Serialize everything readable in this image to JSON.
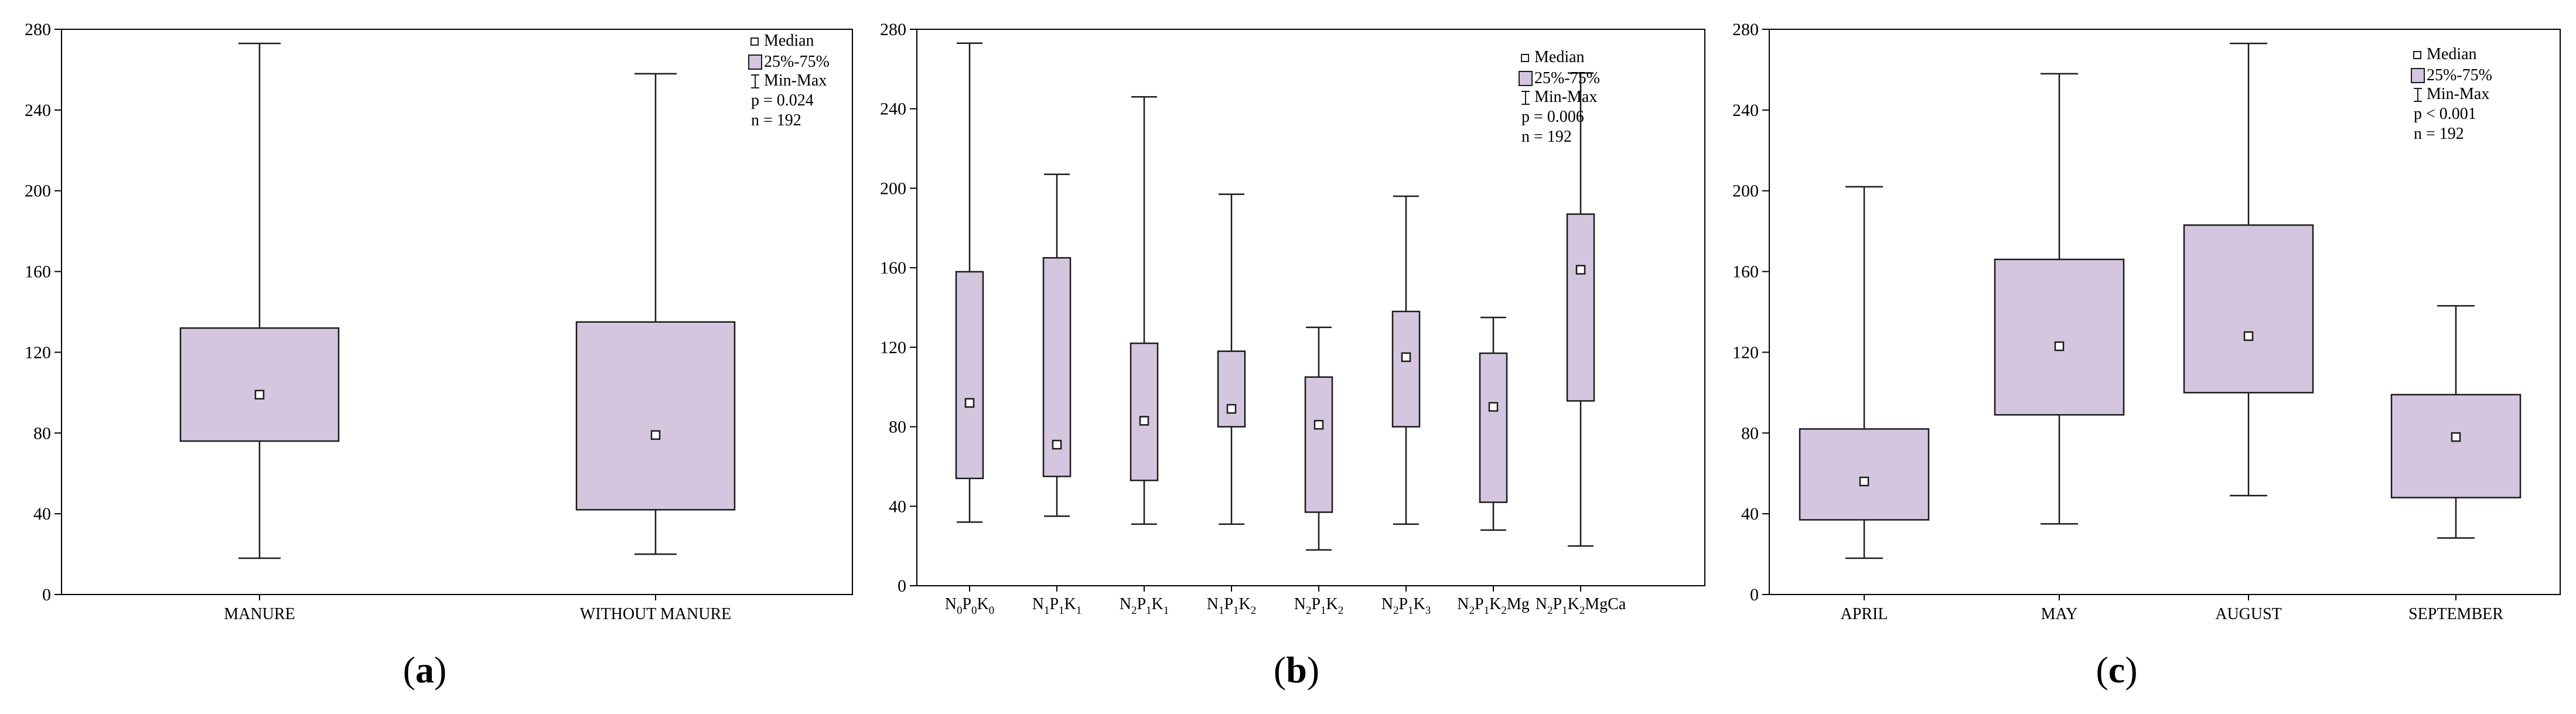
{
  "colors": {
    "box_fill": "#d4c6df",
    "box_stroke": "#1a1a1a",
    "axis": "#000000"
  },
  "legend": {
    "median_label": "Median",
    "iqr_label": "25%-75%",
    "range_label": "Min-Max",
    "median_icon": "small-square-icon",
    "iqr_icon": "box-swatch-icon",
    "range_icon": "whisker-icon"
  },
  "chart_data": [
    {
      "type": "boxplot",
      "caption": "(a)",
      "caption_letter": "a",
      "ylim": [
        0,
        280
      ],
      "yticks": [
        0,
        40,
        80,
        120,
        160,
        200,
        240,
        280
      ],
      "stat_p": "p = 0.024",
      "stat_n": "n = 192",
      "categories": [
        "MANURE",
        "WITHOUT MANURE"
      ],
      "series": [
        {
          "name": "MANURE",
          "min": 18,
          "q1": 76,
          "median": 99,
          "q3": 132,
          "max": 273
        },
        {
          "name": "WITHOUT MANURE",
          "min": 20,
          "q1": 42,
          "median": 79,
          "q3": 135,
          "max": 258
        }
      ]
    },
    {
      "type": "boxplot",
      "caption": "(b)",
      "caption_letter": "b",
      "ylim": [
        0,
        280
      ],
      "yticks": [
        0,
        40,
        80,
        120,
        160,
        200,
        240,
        280
      ],
      "stat_p": "p = 0.006",
      "stat_n": "n = 192",
      "categories": [
        {
          "base": "N",
          "s1": "0",
          "mid": "P",
          "s2": "0",
          "k": "K",
          "s3": "0",
          "tail": ""
        },
        {
          "base": "N",
          "s1": "1",
          "mid": "P",
          "s2": "1",
          "k": "K",
          "s3": "1",
          "tail": ""
        },
        {
          "base": "N",
          "s1": "2",
          "mid": "P",
          "s2": "1",
          "k": "K",
          "s3": "1",
          "tail": ""
        },
        {
          "base": "N",
          "s1": "1",
          "mid": "P",
          "s2": "1",
          "k": "K",
          "s3": "2",
          "tail": ""
        },
        {
          "base": "N",
          "s1": "2",
          "mid": "P",
          "s2": "1",
          "k": "K",
          "s3": "2",
          "tail": ""
        },
        {
          "base": "N",
          "s1": "2",
          "mid": "P",
          "s2": "1",
          "k": "K",
          "s3": "3",
          "tail": ""
        },
        {
          "base": "N",
          "s1": "2",
          "mid": "P",
          "s2": "1",
          "k": "K",
          "s3": "2",
          "tail": "Mg"
        },
        {
          "base": "N",
          "s1": "2",
          "mid": "P",
          "s2": "1",
          "k": "K",
          "s3": "2",
          "tail": "MgCa"
        }
      ],
      "series": [
        {
          "name": "N0P0K0",
          "min": 32,
          "q1": 54,
          "median": 92,
          "q3": 158,
          "max": 273
        },
        {
          "name": "N1P1K1",
          "min": 35,
          "q1": 55,
          "median": 71,
          "q3": 165,
          "max": 207
        },
        {
          "name": "N2P1K1",
          "min": 31,
          "q1": 53,
          "median": 83,
          "q3": 122,
          "max": 246
        },
        {
          "name": "N1P1K2",
          "min": 31,
          "q1": 80,
          "median": 89,
          "q3": 118,
          "max": 197
        },
        {
          "name": "N2P1K2",
          "min": 18,
          "q1": 37,
          "median": 81,
          "q3": 105,
          "max": 130
        },
        {
          "name": "N2P1K3",
          "min": 31,
          "q1": 80,
          "median": 115,
          "q3": 138,
          "max": 196
        },
        {
          "name": "N2P1K2Mg",
          "min": 28,
          "q1": 42,
          "median": 90,
          "q3": 117,
          "max": 135
        },
        {
          "name": "N2P1K2MgCa",
          "min": 20,
          "q1": 93,
          "median": 159,
          "q3": 187,
          "max": 258
        }
      ]
    },
    {
      "type": "boxplot",
      "caption": "(c)",
      "caption_letter": "c",
      "ylim": [
        0,
        280
      ],
      "yticks": [
        0,
        40,
        80,
        120,
        160,
        200,
        240,
        280
      ],
      "stat_p": "p < 0.001",
      "stat_n": "n = 192",
      "categories": [
        "APRIL",
        "MAY",
        "AUGUST",
        "SEPTEMBER"
      ],
      "series": [
        {
          "name": "APRIL",
          "min": 18,
          "q1": 37,
          "median": 56,
          "q3": 82,
          "max": 202
        },
        {
          "name": "MAY",
          "min": 35,
          "q1": 89,
          "median": 123,
          "q3": 166,
          "max": 258
        },
        {
          "name": "AUGUST",
          "min": 49,
          "q1": 100,
          "median": 128,
          "q3": 183,
          "max": 273
        },
        {
          "name": "SEPTEMBER",
          "min": 28,
          "q1": 48,
          "median": 78,
          "q3": 99,
          "max": 143
        }
      ]
    }
  ]
}
